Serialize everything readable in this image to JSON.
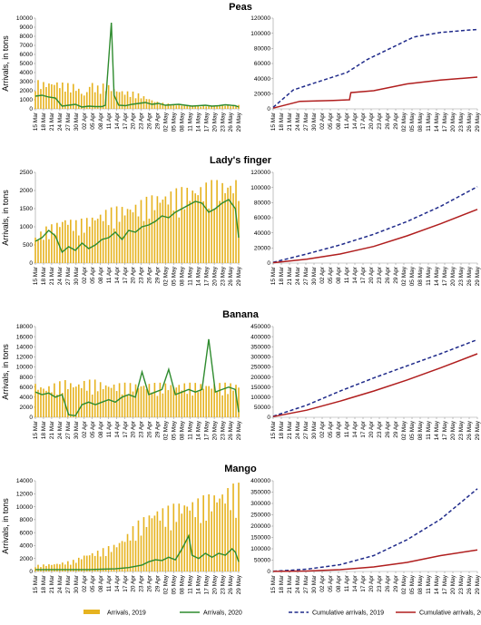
{
  "chart_data": [
    {
      "title": "Peas",
      "left": {
        "type": "bar+line",
        "ylabel": "Arrivals, in tons",
        "ylim": [
          0,
          10000
        ],
        "yticks": [
          0,
          1000,
          2000,
          3000,
          4000,
          5000,
          6000,
          7000,
          8000,
          9000,
          10000
        ],
        "y2019": [
          [
            0,
            2600
          ],
          [
            30,
            2400
          ],
          [
            60,
            2500
          ],
          [
            90,
            2300
          ],
          [
            120,
            2200
          ],
          [
            150,
            1200
          ],
          [
            165,
            2600
          ],
          [
            180,
            2000
          ],
          [
            210,
            2300
          ],
          [
            240,
            1800
          ],
          [
            270,
            1600
          ],
          [
            300,
            1500
          ],
          [
            330,
            1100
          ],
          [
            360,
            700
          ],
          [
            390,
            500
          ],
          [
            420,
            400
          ],
          [
            450,
            300
          ],
          [
            480,
            300
          ],
          [
            510,
            300
          ],
          [
            540,
            300
          ],
          [
            570,
            350
          ]
        ],
        "y2020": [
          [
            0,
            1400
          ],
          [
            20,
            1500
          ],
          [
            40,
            1300
          ],
          [
            60,
            1200
          ],
          [
            80,
            300
          ],
          [
            100,
            400
          ],
          [
            120,
            500
          ],
          [
            140,
            200
          ],
          [
            160,
            300
          ],
          [
            180,
            250
          ],
          [
            200,
            250
          ],
          [
            210,
            400
          ],
          [
            220,
            5500
          ],
          [
            228,
            9500
          ],
          [
            236,
            1500
          ],
          [
            250,
            400
          ],
          [
            270,
            350
          ],
          [
            290,
            500
          ],
          [
            310,
            600
          ],
          [
            330,
            700
          ],
          [
            350,
            500
          ],
          [
            370,
            600
          ],
          [
            390,
            400
          ],
          [
            410,
            450
          ],
          [
            430,
            500
          ],
          [
            450,
            400
          ],
          [
            470,
            300
          ],
          [
            490,
            350
          ],
          [
            510,
            400
          ],
          [
            530,
            300
          ],
          [
            550,
            350
          ],
          [
            570,
            450
          ],
          [
            585,
            400
          ],
          [
            600,
            350
          ],
          [
            610,
            200
          ]
        ]
      },
      "right": {
        "type": "line",
        "ylim": [
          0,
          120000
        ],
        "yticks": [
          0,
          20000,
          40000,
          60000,
          80000,
          100000,
          120000
        ],
        "c2019": [
          [
            0,
            2000
          ],
          [
            60,
            25000
          ],
          [
            150,
            38000
          ],
          [
            220,
            48000
          ],
          [
            280,
            65000
          ],
          [
            350,
            80000
          ],
          [
            420,
            95000
          ],
          [
            500,
            101000
          ],
          [
            580,
            104000
          ],
          [
            610,
            105000
          ]
        ],
        "c2020": [
          [
            0,
            1000
          ],
          [
            80,
            10000
          ],
          [
            180,
            11000
          ],
          [
            228,
            12000
          ],
          [
            232,
            21500
          ],
          [
            300,
            24000
          ],
          [
            400,
            33000
          ],
          [
            500,
            38000
          ],
          [
            610,
            42000
          ]
        ]
      }
    },
    {
      "title": "Lady's finger",
      "left": {
        "type": "bar+line",
        "ylabel": "Arrivals, in tons",
        "ylim": [
          0,
          2500
        ],
        "yticks": [
          0,
          500,
          1000,
          1500,
          2000,
          2500
        ],
        "y2019": [
          [
            0,
            600
          ],
          [
            30,
            800
          ],
          [
            60,
            900
          ],
          [
            90,
            1050
          ],
          [
            120,
            950
          ],
          [
            150,
            1000
          ],
          [
            180,
            1100
          ],
          [
            210,
            1200
          ],
          [
            240,
            1250
          ],
          [
            270,
            1300
          ],
          [
            300,
            1350
          ],
          [
            330,
            1450
          ],
          [
            360,
            1550
          ],
          [
            390,
            1600
          ],
          [
            420,
            1650
          ],
          [
            450,
            1700
          ],
          [
            480,
            1750
          ],
          [
            510,
            1800
          ],
          [
            540,
            1850
          ],
          [
            570,
            1850
          ],
          [
            600,
            1900
          ]
        ],
        "y2020": [
          [
            0,
            600
          ],
          [
            20,
            700
          ],
          [
            40,
            900
          ],
          [
            60,
            750
          ],
          [
            80,
            300
          ],
          [
            100,
            450
          ],
          [
            120,
            350
          ],
          [
            140,
            550
          ],
          [
            160,
            400
          ],
          [
            180,
            500
          ],
          [
            200,
            650
          ],
          [
            220,
            700
          ],
          [
            240,
            850
          ],
          [
            260,
            650
          ],
          [
            280,
            900
          ],
          [
            300,
            850
          ],
          [
            320,
            1000
          ],
          [
            340,
            1050
          ],
          [
            360,
            1150
          ],
          [
            380,
            1300
          ],
          [
            400,
            1250
          ],
          [
            420,
            1400
          ],
          [
            440,
            1500
          ],
          [
            460,
            1600
          ],
          [
            480,
            1700
          ],
          [
            500,
            1650
          ],
          [
            520,
            1400
          ],
          [
            540,
            1500
          ],
          [
            560,
            1650
          ],
          [
            580,
            1750
          ],
          [
            600,
            1500
          ],
          [
            610,
            700
          ]
        ]
      },
      "right": {
        "type": "line",
        "ylim": [
          0,
          120000
        ],
        "yticks": [
          0,
          20000,
          40000,
          60000,
          80000,
          100000,
          120000
        ],
        "c2019": [
          [
            0,
            1000
          ],
          [
            100,
            12000
          ],
          [
            200,
            24000
          ],
          [
            300,
            38000
          ],
          [
            400,
            55000
          ],
          [
            500,
            75000
          ],
          [
            610,
            101000
          ]
        ],
        "c2020": [
          [
            0,
            500
          ],
          [
            100,
            5000
          ],
          [
            200,
            12000
          ],
          [
            300,
            22000
          ],
          [
            400,
            36000
          ],
          [
            500,
            52000
          ],
          [
            610,
            71000
          ]
        ]
      }
    },
    {
      "title": "Banana",
      "left": {
        "type": "bar+line",
        "ylabel": "Arrivals, in tons",
        "ylim": [
          0,
          18000
        ],
        "yticks": [
          0,
          2000,
          4000,
          6000,
          8000,
          10000,
          12000,
          14000,
          16000,
          18000
        ],
        "y2019": [
          [
            0,
            5500
          ],
          [
            30,
            5000
          ],
          [
            60,
            5500
          ],
          [
            90,
            6000
          ],
          [
            120,
            5500
          ],
          [
            150,
            6000
          ],
          [
            180,
            6000
          ],
          [
            210,
            5500
          ],
          [
            240,
            5500
          ],
          [
            270,
            5500
          ],
          [
            300,
            5500
          ],
          [
            330,
            5500
          ],
          [
            360,
            5500
          ],
          [
            390,
            5500
          ],
          [
            420,
            5500
          ],
          [
            450,
            5500
          ],
          [
            480,
            5500
          ],
          [
            510,
            5500
          ],
          [
            540,
            5500
          ],
          [
            570,
            5500
          ],
          [
            600,
            5500
          ]
        ],
        "y2020": [
          [
            0,
            5000
          ],
          [
            20,
            4500
          ],
          [
            40,
            4800
          ],
          [
            60,
            4000
          ],
          [
            80,
            4500
          ],
          [
            100,
            500
          ],
          [
            120,
            300
          ],
          [
            140,
            2500
          ],
          [
            160,
            3000
          ],
          [
            180,
            2500
          ],
          [
            200,
            3000
          ],
          [
            220,
            3500
          ],
          [
            240,
            3000
          ],
          [
            260,
            4000
          ],
          [
            280,
            4500
          ],
          [
            300,
            4000
          ],
          [
            320,
            9000
          ],
          [
            340,
            4500
          ],
          [
            360,
            5000
          ],
          [
            380,
            5500
          ],
          [
            400,
            9500
          ],
          [
            420,
            4500
          ],
          [
            440,
            5000
          ],
          [
            460,
            5500
          ],
          [
            480,
            5000
          ],
          [
            500,
            5500
          ],
          [
            520,
            15500
          ],
          [
            540,
            5000
          ],
          [
            560,
            5500
          ],
          [
            580,
            6000
          ],
          [
            600,
            5500
          ],
          [
            610,
            1000
          ]
        ]
      },
      "right": {
        "type": "line",
        "ylim": [
          0,
          450000
        ],
        "yticks": [
          0,
          50000,
          100000,
          150000,
          200000,
          250000,
          300000,
          350000,
          400000,
          450000
        ],
        "c2019": [
          [
            0,
            5000
          ],
          [
            100,
            60000
          ],
          [
            200,
            130000
          ],
          [
            300,
            195000
          ],
          [
            400,
            255000
          ],
          [
            500,
            315000
          ],
          [
            610,
            385000
          ]
        ],
        "c2020": [
          [
            0,
            3000
          ],
          [
            100,
            35000
          ],
          [
            200,
            80000
          ],
          [
            300,
            130000
          ],
          [
            400,
            185000
          ],
          [
            500,
            245000
          ],
          [
            610,
            315000
          ]
        ]
      }
    },
    {
      "title": "Mango",
      "left": {
        "type": "bar+line",
        "ylabel": "Arrivals, in tons",
        "ylim": [
          0,
          14000
        ],
        "yticks": [
          0,
          2000,
          4000,
          6000,
          8000,
          10000,
          12000,
          14000
        ],
        "y2019": [
          [
            0,
            800
          ],
          [
            30,
            900
          ],
          [
            60,
            1000
          ],
          [
            90,
            1200
          ],
          [
            120,
            1500
          ],
          [
            150,
            2200
          ],
          [
            180,
            2500
          ],
          [
            210,
            3000
          ],
          [
            240,
            3500
          ],
          [
            270,
            4500
          ],
          [
            300,
            6000
          ],
          [
            330,
            7000
          ],
          [
            360,
            8000
          ],
          [
            390,
            8000
          ],
          [
            420,
            8500
          ],
          [
            450,
            9000
          ],
          [
            480,
            9000
          ],
          [
            510,
            9500
          ],
          [
            540,
            10000
          ],
          [
            570,
            10500
          ],
          [
            600,
            11000
          ]
        ],
        "y2020": [
          [
            0,
            300
          ],
          [
            40,
            300
          ],
          [
            80,
            300
          ],
          [
            120,
            300
          ],
          [
            160,
            300
          ],
          [
            200,
            350
          ],
          [
            240,
            400
          ],
          [
            280,
            600
          ],
          [
            300,
            800
          ],
          [
            320,
            1000
          ],
          [
            340,
            1500
          ],
          [
            360,
            1800
          ],
          [
            380,
            1700
          ],
          [
            400,
            2200
          ],
          [
            420,
            1800
          ],
          [
            440,
            3500
          ],
          [
            460,
            5500
          ],
          [
            470,
            2500
          ],
          [
            490,
            2000
          ],
          [
            510,
            2800
          ],
          [
            530,
            2200
          ],
          [
            550,
            2800
          ],
          [
            570,
            2500
          ],
          [
            590,
            3500
          ],
          [
            600,
            3000
          ],
          [
            610,
            1500
          ]
        ]
      },
      "right": {
        "type": "line",
        "ylim": [
          0,
          400000
        ],
        "yticks": [
          0,
          50000,
          100000,
          150000,
          200000,
          250000,
          300000,
          350000,
          400000
        ],
        "c2019": [
          [
            0,
            1000
          ],
          [
            100,
            10000
          ],
          [
            200,
            30000
          ],
          [
            300,
            70000
          ],
          [
            400,
            140000
          ],
          [
            500,
            230000
          ],
          [
            610,
            365000
          ]
        ],
        "c2020": [
          [
            0,
            500
          ],
          [
            100,
            2000
          ],
          [
            200,
            8000
          ],
          [
            300,
            20000
          ],
          [
            400,
            40000
          ],
          [
            500,
            70000
          ],
          [
            610,
            95000
          ]
        ]
      }
    }
  ],
  "xticks": [
    "15 Mar",
    "18 Mar",
    "21 Mar",
    "24 Mar",
    "27 Mar",
    "30 Mar",
    "02 Apr",
    "05 Apr",
    "08 Apr",
    "11 Apr",
    "14 Apr",
    "17 Apr",
    "20 Apr",
    "23 Apr",
    "26 Apr",
    "29 Apr",
    "02 May",
    "05 May",
    "08 May",
    "11 May",
    "14 May",
    "17 May",
    "20 May",
    "23 May",
    "26 May",
    "29 May"
  ],
  "legend": [
    {
      "label": "Arrivals, 2019",
      "color": "#e6b320",
      "style": "bar"
    },
    {
      "label": "Arrivals, 2020",
      "color": "#2e8b2e",
      "style": "line"
    },
    {
      "label": "Cumulative arrivals, 2019",
      "color": "#1f2a8a",
      "style": "dash"
    },
    {
      "label": "Cumulative arrivals, 2020",
      "color": "#b01e1e",
      "style": "line"
    }
  ]
}
